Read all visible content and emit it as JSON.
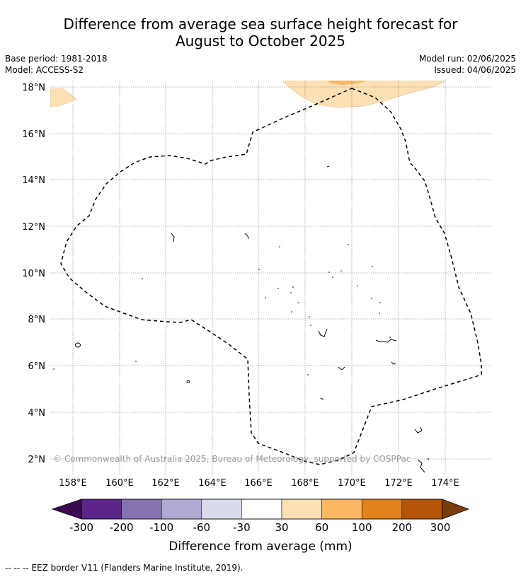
{
  "title": {
    "line1": "Difference from average sea surface height forecast for",
    "line2": "August to October 2025"
  },
  "info": {
    "base_period": "Base period: 1981-2018",
    "model": "Model: ACCESS-S2",
    "model_run": "Model run: 02/06/2025",
    "issued": "Issued: 04/06/2025"
  },
  "map": {
    "lon_ticks": [
      "158°E",
      "160°E",
      "162°E",
      "164°E",
      "166°E",
      "168°E",
      "170°E",
      "172°E",
      "174°E"
    ],
    "lat_ticks": [
      "2°N",
      "4°N",
      "6°N",
      "8°N",
      "10°N",
      "12°N",
      "14°N",
      "16°N",
      "18°N"
    ],
    "copyright": "© Commonwealth of Australia 2025, Bureau of Meteorology, supported by COSPPac",
    "grid": true,
    "colors": {
      "ocean_background": "#ffffff",
      "light_orange": "#fde0b4",
      "orange": "#fbb762",
      "coastline": "#000000",
      "eez_border": "#000000"
    }
  },
  "legend": {
    "title": "Difference from average (mm)",
    "tick_labels": [
      "-300",
      "-200",
      "-100",
      "-60",
      "-30",
      "30",
      "60",
      "100",
      "200",
      "300"
    ],
    "colors": [
      "#3a0a52",
      "#5d2489",
      "#8671b1",
      "#b1a8d4",
      "#dadaed",
      "#ffffff",
      "#fde0b4",
      "#fbb762",
      "#e2821c",
      "#b45508",
      "#7a3c0c"
    ]
  },
  "footnote": "-- -- -- EEZ border V11 (Flanders Marine Institute, 2019)."
}
